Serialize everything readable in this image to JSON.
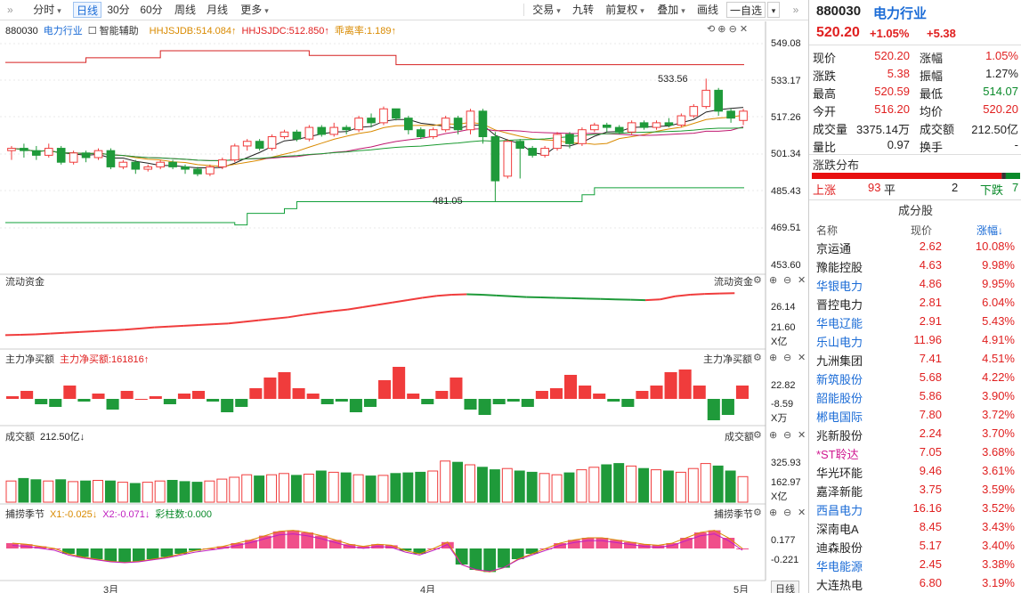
{
  "toolbar": {
    "items": [
      "分时",
      "日线",
      "30分",
      "60分",
      "周线",
      "月线",
      "更多",
      "交易",
      "九转",
      "前复权",
      "叠加",
      "画线",
      "自选"
    ],
    "active": "日线"
  },
  "panels": {
    "main": {
      "title_code": "880030",
      "title_name": "电力行业",
      "assist": "智能辅助",
      "ind1": "HHJSJDB:514.084↑",
      "ind2": "HHJSJDC:512.850↑",
      "ind3": "乖离率:1.189↑",
      "ticks": [
        "549.08",
        "533.17",
        "517.26",
        "501.34",
        "485.43",
        "469.51",
        "453.60"
      ],
      "high_label": "533.56",
      "low_label": "481.05"
    },
    "flow": {
      "title": "流动资金",
      "right_title": "流动资金",
      "ticks": [
        "26.14",
        "21.60"
      ],
      "unit": "X亿"
    },
    "net": {
      "title": "主力净买额",
      "value_label": "主力净买额:161816↑",
      "right_title": "主力净买额",
      "ticks": [
        "22.82",
        "-8.59"
      ],
      "unit": "X万"
    },
    "vol": {
      "title": "成交额",
      "value_label": "212.50亿↓",
      "right_title": "成交额",
      "ticks": [
        "325.93",
        "162.97"
      ],
      "unit": "X亿"
    },
    "season": {
      "title": "捕捞季节",
      "x1": "X1:-0.025↓",
      "x2": "X2:-0.071↓",
      "bars": "彩柱数:0.000",
      "right_title": "捕捞季节",
      "ticks": [
        "0.177",
        "-0.221"
      ]
    }
  },
  "xaxis": {
    "labels": [
      "3月",
      "4月",
      "5月"
    ]
  },
  "period_button": "日线",
  "quote": {
    "code": "880030",
    "name": "电力行业",
    "price": "520.20",
    "pct": "+1.05%",
    "chg": "+5.38",
    "rows": [
      {
        "l1": "现价",
        "v1": "520.20",
        "c1": "red",
        "l2": "涨幅",
        "v2": "1.05%",
        "c2": "red"
      },
      {
        "l1": "涨跌",
        "v1": "5.38",
        "c1": "red",
        "l2": "振幅",
        "v2": "1.27%",
        "c2": "dark"
      },
      {
        "l1": "最高",
        "v1": "520.59",
        "c1": "red",
        "l2": "最低",
        "v2": "514.07",
        "c2": "green"
      },
      {
        "l1": "今开",
        "v1": "516.20",
        "c1": "red",
        "l2": "均价",
        "v2": "520.20",
        "c2": "red"
      },
      {
        "l1": "成交量",
        "v1": "3375.14万",
        "c1": "dark",
        "l2": "成交额",
        "v2": "212.50亿",
        "c2": "dark"
      },
      {
        "l1": "量比",
        "v1": "0.97",
        "c1": "dark",
        "l2": "换手",
        "v2": "-",
        "c2": "dark"
      }
    ]
  },
  "distribution": {
    "title": "涨跌分布",
    "up_label": "上涨",
    "up": "93",
    "flat_label": "平",
    "flat": "2",
    "down_label": "下跌",
    "down": "7",
    "up_n": 93,
    "flat_n": 2,
    "down_n": 7
  },
  "components": {
    "title": "成分股",
    "headers": {
      "name": "名称",
      "price": "现价",
      "pct": "涨幅↓"
    },
    "rows": [
      {
        "name": "京运通",
        "price": "2.62",
        "pct": "10.08%",
        "nc": "dark"
      },
      {
        "name": "豫能控股",
        "price": "4.63",
        "pct": "9.98%",
        "nc": "dark"
      },
      {
        "name": "华银电力",
        "price": "4.86",
        "pct": "9.95%",
        "nc": "blue"
      },
      {
        "name": "晋控电力",
        "price": "2.81",
        "pct": "6.04%",
        "nc": "dark"
      },
      {
        "name": "华电辽能",
        "price": "2.91",
        "pct": "5.43%",
        "nc": "blue"
      },
      {
        "name": "乐山电力",
        "price": "11.96",
        "pct": "4.91%",
        "nc": "blue"
      },
      {
        "name": "九洲集团",
        "price": "7.41",
        "pct": "4.51%",
        "nc": "dark"
      },
      {
        "name": "新筑股份",
        "price": "5.68",
        "pct": "4.22%",
        "nc": "blue"
      },
      {
        "name": "韶能股份",
        "price": "5.86",
        "pct": "3.90%",
        "nc": "blue"
      },
      {
        "name": "郴电国际",
        "price": "7.80",
        "pct": "3.72%",
        "nc": "blue"
      },
      {
        "name": "兆新股份",
        "price": "2.24",
        "pct": "3.70%",
        "nc": "dark"
      },
      {
        "name": "*ST聆达",
        "price": "7.05",
        "pct": "3.68%",
        "nc": "magenta"
      },
      {
        "name": "华光环能",
        "price": "9.46",
        "pct": "3.61%",
        "nc": "dark"
      },
      {
        "name": "嘉泽新能",
        "price": "3.75",
        "pct": "3.59%",
        "nc": "dark"
      },
      {
        "name": "西昌电力",
        "price": "16.16",
        "pct": "3.52%",
        "nc": "blue"
      },
      {
        "name": "深南电A",
        "price": "8.45",
        "pct": "3.43%",
        "nc": "dark"
      },
      {
        "name": "迪森股份",
        "price": "5.17",
        "pct": "3.40%",
        "nc": "dark"
      },
      {
        "name": "华电能源",
        "price": "2.45",
        "pct": "3.38%",
        "nc": "blue"
      },
      {
        "name": "大连热电",
        "price": "6.80",
        "pct": "3.19%",
        "nc": "dark"
      }
    ]
  },
  "colors": {
    "up": "#f03c3c",
    "down": "#1f9a3a",
    "red_line": "#d62020",
    "green_line": "#12a03a"
  },
  "chart_data": {
    "type": "candlestick",
    "ylim": [
      453.6,
      549.08
    ],
    "candles": [
      [
        503,
        504,
        499,
        505
      ],
      [
        504,
        503,
        500,
        506
      ],
      [
        503,
        501,
        499,
        505
      ],
      [
        501,
        504,
        500,
        506
      ],
      [
        504,
        498,
        497,
        505
      ],
      [
        498,
        502,
        497,
        503
      ],
      [
        502,
        500,
        498,
        503
      ],
      [
        500,
        503,
        499,
        504
      ],
      [
        503,
        496,
        495,
        504
      ],
      [
        496,
        498,
        495,
        499
      ],
      [
        498,
        495,
        493,
        499
      ],
      [
        495,
        496,
        494,
        497
      ],
      [
        496,
        498,
        495,
        499
      ],
      [
        498,
        496,
        495,
        499
      ],
      [
        496,
        495,
        493,
        497
      ],
      [
        495,
        493,
        492,
        496
      ],
      [
        493,
        496,
        492,
        497
      ],
      [
        496,
        499,
        495,
        500
      ],
      [
        499,
        505,
        498,
        506
      ],
      [
        505,
        507,
        503,
        508
      ],
      [
        507,
        504,
        503,
        508
      ],
      [
        504,
        509,
        503,
        510
      ],
      [
        509,
        511,
        508,
        512
      ],
      [
        511,
        508,
        507,
        512
      ],
      [
        508,
        513,
        507,
        514
      ],
      [
        513,
        510,
        509,
        514
      ],
      [
        510,
        513,
        509,
        515
      ],
      [
        513,
        512,
        510,
        514
      ],
      [
        512,
        517,
        511,
        518
      ],
      [
        517,
        515,
        513,
        519
      ],
      [
        515,
        521,
        514,
        522
      ],
      [
        521,
        517,
        516,
        521
      ],
      [
        517,
        512,
        510,
        518
      ],
      [
        512,
        509,
        508,
        513
      ],
      [
        509,
        512,
        508,
        513
      ],
      [
        512,
        517,
        511,
        518
      ],
      [
        517,
        512,
        510,
        518
      ],
      [
        512,
        520,
        510,
        521
      ],
      [
        520,
        509,
        506,
        521
      ],
      [
        509,
        490,
        481,
        511
      ],
      [
        492,
        507,
        491,
        508
      ],
      [
        507,
        504,
        491,
        508
      ],
      [
        504,
        501,
        500,
        505
      ],
      [
        501,
        504,
        500,
        505
      ],
      [
        504,
        510,
        503,
        511
      ],
      [
        510,
        506,
        504,
        511
      ],
      [
        506,
        512,
        505,
        513
      ],
      [
        512,
        514,
        511,
        515
      ],
      [
        514,
        513,
        511,
        515
      ],
      [
        513,
        511,
        510,
        514
      ],
      [
        511,
        515,
        510,
        516
      ],
      [
        515,
        513,
        512,
        516
      ],
      [
        513,
        515,
        512,
        516
      ],
      [
        515,
        514,
        513,
        517
      ],
      [
        514,
        518,
        513,
        519
      ],
      [
        518,
        522,
        517,
        523
      ],
      [
        522,
        529,
        521,
        534
      ],
      [
        529,
        520,
        518,
        530
      ],
      [
        520,
        517,
        515,
        521
      ],
      [
        516,
        520,
        514,
        521
      ]
    ],
    "band_upper_steps": [
      [
        0,
        541
      ],
      [
        6,
        543
      ],
      [
        12,
        546
      ],
      [
        24,
        544
      ],
      [
        31,
        540
      ],
      [
        59,
        540
      ]
    ],
    "band_lower_steps": [
      [
        0,
        472
      ],
      [
        18,
        471
      ],
      [
        19,
        476
      ],
      [
        22,
        478
      ],
      [
        23,
        481
      ],
      [
        44,
        481
      ],
      [
        46,
        484
      ],
      [
        47,
        487
      ],
      [
        59,
        487
      ]
    ],
    "flow_values": [
      21.6,
      21.65,
      21.7,
      21.8,
      21.9,
      22.0,
      22.1,
      22.2,
      22.3,
      22.45,
      22.6,
      22.7,
      22.8,
      22.9,
      23.0,
      23.1,
      23.3,
      23.5,
      23.7,
      23.9,
      24.2,
      24.45,
      24.7,
      24.9,
      25.2,
      25.5,
      25.8,
      26.1,
      26.4,
      26.65,
      26.8,
      26.85,
      26.8,
      26.7,
      26.6,
      26.5,
      26.45,
      26.4,
      26.35,
      26.3,
      26.25,
      26.2,
      26.15,
      26.1,
      26.2,
      26.6,
      26.8,
      26.9,
      26.95,
      27.0
    ],
    "net_values": [
      1,
      3,
      -2,
      -3,
      5,
      -1,
      2,
      -4,
      3,
      0,
      1,
      -2,
      2,
      3,
      -1,
      -5,
      -3,
      4,
      8,
      10,
      4,
      2,
      -2,
      -1,
      -5,
      -3,
      7,
      12,
      2,
      -2,
      3,
      8,
      -4,
      -6,
      -2,
      -1,
      -3,
      3,
      4,
      9,
      5,
      2,
      -1,
      -3,
      3,
      5,
      10,
      11,
      5,
      -8,
      -6,
      5
    ],
    "vol_values": [
      170,
      190,
      180,
      170,
      180,
      165,
      170,
      175,
      170,
      160,
      150,
      160,
      170,
      175,
      165,
      160,
      170,
      185,
      200,
      220,
      210,
      220,
      230,
      215,
      225,
      250,
      240,
      235,
      220,
      210,
      215,
      230,
      235,
      240,
      250,
      330,
      320,
      300,
      280,
      260,
      270,
      250,
      240,
      230,
      220,
      235,
      260,
      280,
      300,
      310,
      290,
      270,
      260,
      250,
      240,
      270,
      310,
      290,
      250,
      205
    ],
    "season_values": [
      0.05,
      0.04,
      0.02,
      0.0,
      -0.05,
      -0.08,
      -0.1,
      -0.12,
      -0.13,
      -0.12,
      -0.1,
      -0.08,
      -0.05,
      -0.02,
      0.0,
      0.02,
      0.05,
      0.08,
      0.12,
      0.16,
      0.17,
      0.15,
      0.12,
      0.08,
      0.04,
      0.02,
      0.04,
      0.03,
      -0.02,
      -0.05,
      0.0,
      0.06,
      -0.15,
      -0.2,
      -0.22,
      -0.18,
      -0.1,
      -0.05,
      0.0,
      0.05,
      0.08,
      0.1,
      0.1,
      0.08,
      0.06,
      0.04,
      0.03,
      0.05,
      0.1,
      0.15,
      0.17,
      0.1,
      0.0
    ]
  }
}
